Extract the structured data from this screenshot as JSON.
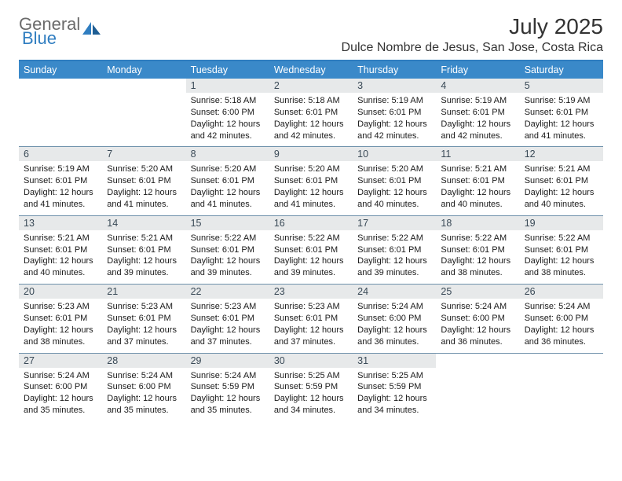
{
  "brand": {
    "word1": "General",
    "word2": "Blue"
  },
  "title": "July 2025",
  "location": "Dulce Nombre de Jesus, San Jose, Costa Rica",
  "colors": {
    "header_bg": "#3a89c9",
    "header_text": "#ffffff",
    "daynum_bg": "#e7e9ea",
    "daynum_text": "#3a4a57",
    "rule": "#2f7dc0",
    "cell_border": "#6f91ab",
    "body_text": "#1a1a1a",
    "title_text": "#333333",
    "logo_gray": "#6b6b6b",
    "logo_blue": "#2f7dc0",
    "background": "#ffffff"
  },
  "fonts": {
    "title_pt": 28,
    "location_pt": 16,
    "header_pt": 12.5,
    "body_pt": 11
  },
  "dayHeaders": [
    "Sunday",
    "Monday",
    "Tuesday",
    "Wednesday",
    "Thursday",
    "Friday",
    "Saturday"
  ],
  "weeks": [
    [
      {
        "n": "",
        "sunrise": "",
        "sunset": "",
        "daylight": ""
      },
      {
        "n": "",
        "sunrise": "",
        "sunset": "",
        "daylight": ""
      },
      {
        "n": "1",
        "sunrise": "Sunrise: 5:18 AM",
        "sunset": "Sunset: 6:00 PM",
        "daylight": "Daylight: 12 hours and 42 minutes."
      },
      {
        "n": "2",
        "sunrise": "Sunrise: 5:18 AM",
        "sunset": "Sunset: 6:01 PM",
        "daylight": "Daylight: 12 hours and 42 minutes."
      },
      {
        "n": "3",
        "sunrise": "Sunrise: 5:19 AM",
        "sunset": "Sunset: 6:01 PM",
        "daylight": "Daylight: 12 hours and 42 minutes."
      },
      {
        "n": "4",
        "sunrise": "Sunrise: 5:19 AM",
        "sunset": "Sunset: 6:01 PM",
        "daylight": "Daylight: 12 hours and 42 minutes."
      },
      {
        "n": "5",
        "sunrise": "Sunrise: 5:19 AM",
        "sunset": "Sunset: 6:01 PM",
        "daylight": "Daylight: 12 hours and 41 minutes."
      }
    ],
    [
      {
        "n": "6",
        "sunrise": "Sunrise: 5:19 AM",
        "sunset": "Sunset: 6:01 PM",
        "daylight": "Daylight: 12 hours and 41 minutes."
      },
      {
        "n": "7",
        "sunrise": "Sunrise: 5:20 AM",
        "sunset": "Sunset: 6:01 PM",
        "daylight": "Daylight: 12 hours and 41 minutes."
      },
      {
        "n": "8",
        "sunrise": "Sunrise: 5:20 AM",
        "sunset": "Sunset: 6:01 PM",
        "daylight": "Daylight: 12 hours and 41 minutes."
      },
      {
        "n": "9",
        "sunrise": "Sunrise: 5:20 AM",
        "sunset": "Sunset: 6:01 PM",
        "daylight": "Daylight: 12 hours and 41 minutes."
      },
      {
        "n": "10",
        "sunrise": "Sunrise: 5:20 AM",
        "sunset": "Sunset: 6:01 PM",
        "daylight": "Daylight: 12 hours and 40 minutes."
      },
      {
        "n": "11",
        "sunrise": "Sunrise: 5:21 AM",
        "sunset": "Sunset: 6:01 PM",
        "daylight": "Daylight: 12 hours and 40 minutes."
      },
      {
        "n": "12",
        "sunrise": "Sunrise: 5:21 AM",
        "sunset": "Sunset: 6:01 PM",
        "daylight": "Daylight: 12 hours and 40 minutes."
      }
    ],
    [
      {
        "n": "13",
        "sunrise": "Sunrise: 5:21 AM",
        "sunset": "Sunset: 6:01 PM",
        "daylight": "Daylight: 12 hours and 40 minutes."
      },
      {
        "n": "14",
        "sunrise": "Sunrise: 5:21 AM",
        "sunset": "Sunset: 6:01 PM",
        "daylight": "Daylight: 12 hours and 39 minutes."
      },
      {
        "n": "15",
        "sunrise": "Sunrise: 5:22 AM",
        "sunset": "Sunset: 6:01 PM",
        "daylight": "Daylight: 12 hours and 39 minutes."
      },
      {
        "n": "16",
        "sunrise": "Sunrise: 5:22 AM",
        "sunset": "Sunset: 6:01 PM",
        "daylight": "Daylight: 12 hours and 39 minutes."
      },
      {
        "n": "17",
        "sunrise": "Sunrise: 5:22 AM",
        "sunset": "Sunset: 6:01 PM",
        "daylight": "Daylight: 12 hours and 39 minutes."
      },
      {
        "n": "18",
        "sunrise": "Sunrise: 5:22 AM",
        "sunset": "Sunset: 6:01 PM",
        "daylight": "Daylight: 12 hours and 38 minutes."
      },
      {
        "n": "19",
        "sunrise": "Sunrise: 5:22 AM",
        "sunset": "Sunset: 6:01 PM",
        "daylight": "Daylight: 12 hours and 38 minutes."
      }
    ],
    [
      {
        "n": "20",
        "sunrise": "Sunrise: 5:23 AM",
        "sunset": "Sunset: 6:01 PM",
        "daylight": "Daylight: 12 hours and 38 minutes."
      },
      {
        "n": "21",
        "sunrise": "Sunrise: 5:23 AM",
        "sunset": "Sunset: 6:01 PM",
        "daylight": "Daylight: 12 hours and 37 minutes."
      },
      {
        "n": "22",
        "sunrise": "Sunrise: 5:23 AM",
        "sunset": "Sunset: 6:01 PM",
        "daylight": "Daylight: 12 hours and 37 minutes."
      },
      {
        "n": "23",
        "sunrise": "Sunrise: 5:23 AM",
        "sunset": "Sunset: 6:01 PM",
        "daylight": "Daylight: 12 hours and 37 minutes."
      },
      {
        "n": "24",
        "sunrise": "Sunrise: 5:24 AM",
        "sunset": "Sunset: 6:00 PM",
        "daylight": "Daylight: 12 hours and 36 minutes."
      },
      {
        "n": "25",
        "sunrise": "Sunrise: 5:24 AM",
        "sunset": "Sunset: 6:00 PM",
        "daylight": "Daylight: 12 hours and 36 minutes."
      },
      {
        "n": "26",
        "sunrise": "Sunrise: 5:24 AM",
        "sunset": "Sunset: 6:00 PM",
        "daylight": "Daylight: 12 hours and 36 minutes."
      }
    ],
    [
      {
        "n": "27",
        "sunrise": "Sunrise: 5:24 AM",
        "sunset": "Sunset: 6:00 PM",
        "daylight": "Daylight: 12 hours and 35 minutes."
      },
      {
        "n": "28",
        "sunrise": "Sunrise: 5:24 AM",
        "sunset": "Sunset: 6:00 PM",
        "daylight": "Daylight: 12 hours and 35 minutes."
      },
      {
        "n": "29",
        "sunrise": "Sunrise: 5:24 AM",
        "sunset": "Sunset: 5:59 PM",
        "daylight": "Daylight: 12 hours and 35 minutes."
      },
      {
        "n": "30",
        "sunrise": "Sunrise: 5:25 AM",
        "sunset": "Sunset: 5:59 PM",
        "daylight": "Daylight: 12 hours and 34 minutes."
      },
      {
        "n": "31",
        "sunrise": "Sunrise: 5:25 AM",
        "sunset": "Sunset: 5:59 PM",
        "daylight": "Daylight: 12 hours and 34 minutes."
      },
      {
        "n": "",
        "sunrise": "",
        "sunset": "",
        "daylight": ""
      },
      {
        "n": "",
        "sunrise": "",
        "sunset": "",
        "daylight": ""
      }
    ]
  ]
}
